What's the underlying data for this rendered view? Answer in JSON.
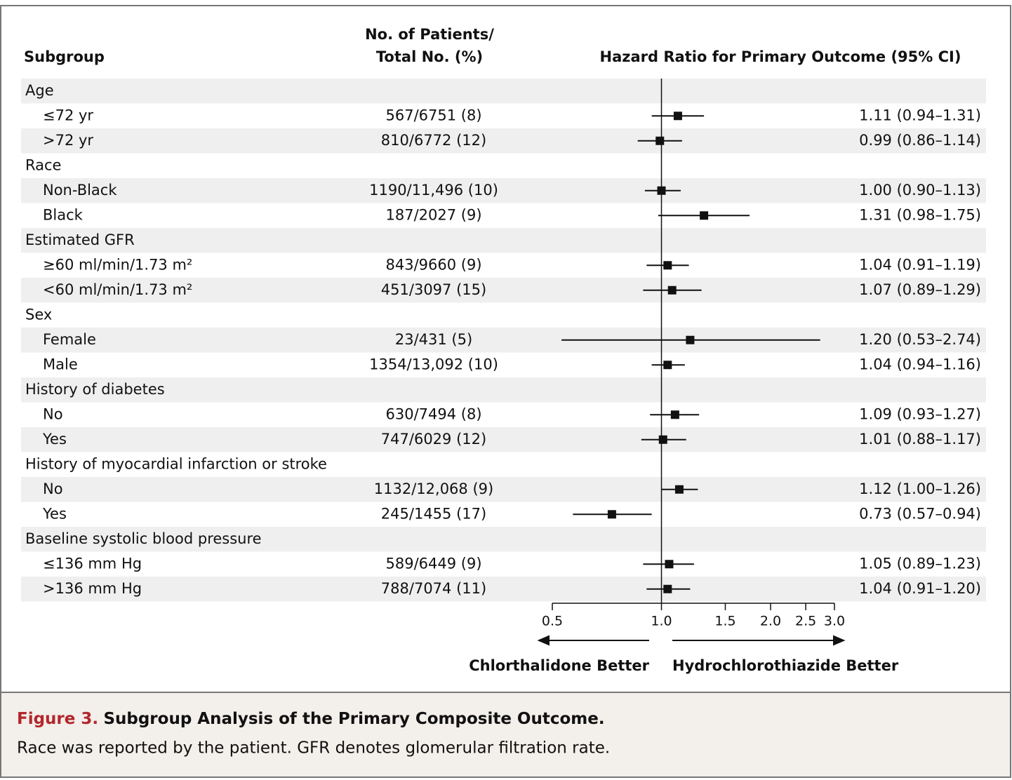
{
  "chart_data": {
    "type": "forest",
    "column_headers": {
      "subgroup": "Subgroup",
      "patients": [
        "No. of Patients/",
        "Total No. (%)"
      ],
      "effect": "Hazard Ratio for Primary Outcome (95% CI)"
    },
    "groups": [
      {
        "name": "Age",
        "rows": [
          {
            "label": "≤72 yr",
            "patients": "567/6751 (8)",
            "value": 1.11,
            "lower": 0.94,
            "upper": 1.31,
            "value_label": "1.11 (0.94–1.31)"
          },
          {
            "label": ">72 yr",
            "patients": "810/6772 (12)",
            "value": 0.99,
            "lower": 0.86,
            "upper": 1.14,
            "value_label": "0.99 (0.86–1.14)"
          }
        ]
      },
      {
        "name": "Race",
        "rows": [
          {
            "label": "Non-Black",
            "patients": "1190/11,496 (10)",
            "value": 1.0,
            "lower": 0.9,
            "upper": 1.13,
            "value_label": "1.00 (0.90–1.13)"
          },
          {
            "label": "Black",
            "patients": "187/2027 (9)",
            "value": 1.31,
            "lower": 0.98,
            "upper": 1.75,
            "value_label": "1.31 (0.98–1.75)"
          }
        ]
      },
      {
        "name": "Estimated GFR",
        "rows": [
          {
            "label": "≥60 ml/min/1.73 m²",
            "patients": "843/9660 (9)",
            "value": 1.04,
            "lower": 0.91,
            "upper": 1.19,
            "value_label": "1.04 (0.91–1.19)"
          },
          {
            "label": "<60 ml/min/1.73 m²",
            "patients": "451/3097 (15)",
            "value": 1.07,
            "lower": 0.89,
            "upper": 1.29,
            "value_label": "1.07 (0.89–1.29)"
          }
        ]
      },
      {
        "name": "Sex",
        "rows": [
          {
            "label": "Female",
            "patients": "23/431 (5)",
            "value": 1.2,
            "lower": 0.53,
            "upper": 2.74,
            "value_label": "1.20 (0.53–2.74)"
          },
          {
            "label": "Male",
            "patients": "1354/13,092 (10)",
            "value": 1.04,
            "lower": 0.94,
            "upper": 1.16,
            "value_label": "1.04 (0.94–1.16)"
          }
        ]
      },
      {
        "name": "History of diabetes",
        "rows": [
          {
            "label": "No",
            "patients": "630/7494 (8)",
            "value": 1.09,
            "lower": 0.93,
            "upper": 1.27,
            "value_label": "1.09 (0.93–1.27)"
          },
          {
            "label": "Yes",
            "patients": "747/6029 (12)",
            "value": 1.01,
            "lower": 0.88,
            "upper": 1.17,
            "value_label": "1.01 (0.88–1.17)"
          }
        ]
      },
      {
        "name": "History of myocardial infarction or stroke",
        "rows": [
          {
            "label": "No",
            "patients": "1132/12,068 (9)",
            "value": 1.12,
            "lower": 1.0,
            "upper": 1.26,
            "value_label": "1.12 (1.00–1.26)"
          },
          {
            "label": "Yes",
            "patients": "245/1455 (17)",
            "value": 0.73,
            "lower": 0.57,
            "upper": 0.94,
            "value_label": "0.73 (0.57–0.94)"
          }
        ]
      },
      {
        "name": "Baseline systolic blood pressure",
        "rows": [
          {
            "label": "≤136 mm Hg",
            "patients": "589/6449 (9)",
            "value": 1.05,
            "lower": 0.89,
            "upper": 1.23,
            "value_label": "1.05 (0.89–1.23)"
          },
          {
            "label": ">136 mm Hg",
            "patients": "788/7074 (11)",
            "value": 1.04,
            "lower": 0.91,
            "upper": 1.2,
            "value_label": "1.04 (0.91–1.20)"
          }
        ]
      }
    ],
    "xlim": [
      0.5,
      3.0
    ],
    "log_x": true,
    "xticks": [
      0.5,
      {
        "value": 1.0,
        "label": "1.0"
      },
      1.5,
      {
        "value": 2.0,
        "label": "2.0"
      },
      2.5,
      {
        "value": 3.0,
        "label": "3.0"
      }
    ],
    "reference_line": 1,
    "left_label": "Chlorthalidone Better",
    "right_label": "Hydrochlorothiazide Better",
    "color": "#111111",
    "shade": "#efefef"
  },
  "caption": {
    "label": "Figure 3.",
    "title": "Subgroup Analysis of the Primary Composite Outcome.",
    "text": "Race was reported by the patient. GFR denotes glomerular filtration rate."
  }
}
